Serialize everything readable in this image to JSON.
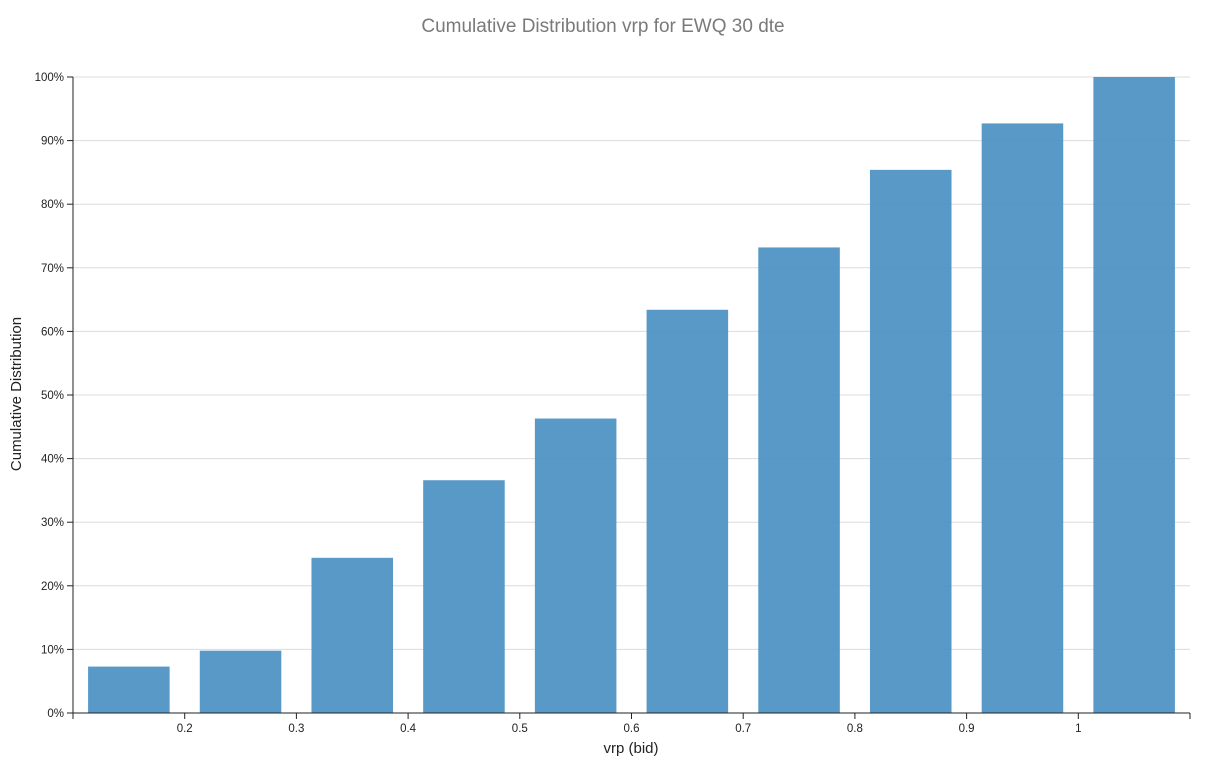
{
  "chart_data": {
    "type": "bar",
    "title": "Cumulative Distribution vrp for EWQ 30 dte",
    "xlabel": "vrp (bid)",
    "ylabel": "Cumulative Distribution",
    "bar_color": "#4a90c2",
    "grid": true,
    "x_ticks": [
      "0.2",
      "0.3",
      "0.4",
      "0.5",
      "0.6",
      "0.7",
      "0.8",
      "0.9",
      "1"
    ],
    "y_ticks": [
      "0%",
      "10%",
      "20%",
      "30%",
      "40%",
      "50%",
      "60%",
      "70%",
      "80%",
      "90%",
      "100%"
    ],
    "ylim": [
      0,
      100
    ],
    "bars": [
      {
        "x": 0.15,
        "value": 7.3
      },
      {
        "x": 0.25,
        "value": 9.8
      },
      {
        "x": 0.35,
        "value": 24.4
      },
      {
        "x": 0.45,
        "value": 36.6
      },
      {
        "x": 0.55,
        "value": 46.3
      },
      {
        "x": 0.65,
        "value": 63.4
      },
      {
        "x": 0.75,
        "value": 73.2
      },
      {
        "x": 0.85,
        "value": 85.4
      },
      {
        "x": 0.95,
        "value": 92.7
      },
      {
        "x": 1.05,
        "value": 100
      }
    ]
  }
}
